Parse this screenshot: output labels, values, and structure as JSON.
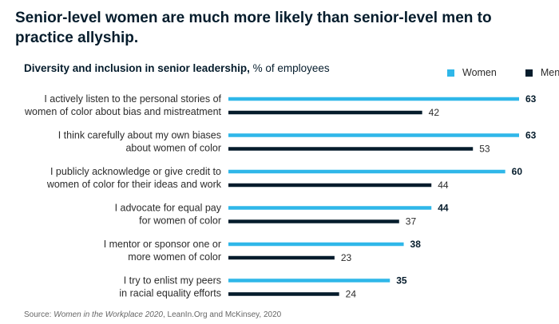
{
  "headline": "Senior-level women are much more likely than senior-level men to practice allyship.",
  "subtitle": {
    "bold": "Diversity and inclusion in senior leadership,",
    "rest": " % of employees"
  },
  "legend": [
    {
      "label": "Women",
      "color": "#2fb7e9"
    },
    {
      "label": "Men",
      "color": "#051c2c"
    }
  ],
  "source": {
    "prefix": "Source: ",
    "italic": "Women in the Workplace 2020",
    "suffix": ", LeanIn.Org and McKinsey, 2020"
  },
  "chart_data": {
    "type": "bar",
    "orientation": "horizontal",
    "categories": [
      [
        "I actively listen to the personal stories of",
        "women of color about bias and mistreatment"
      ],
      [
        "I think carefully about my own biases",
        "about women of color"
      ],
      [
        "I publicly acknowledge or give credit to",
        "women of color for their ideas and work"
      ],
      [
        "I advocate for equal pay",
        "for women of color"
      ],
      [
        "I mentor or sponsor one or",
        "more women of color"
      ],
      [
        "I try to enlist my peers",
        "in racial equality efforts"
      ]
    ],
    "series": [
      {
        "name": "Women",
        "color": "#2fb7e9",
        "values": [
          63,
          63,
          60,
          44,
          38,
          35
        ]
      },
      {
        "name": "Men",
        "color": "#051c2c",
        "values": [
          42,
          53,
          44,
          37,
          23,
          24
        ]
      }
    ],
    "xlim": [
      0,
      63
    ],
    "grid": false,
    "legend_position": "top-right"
  }
}
